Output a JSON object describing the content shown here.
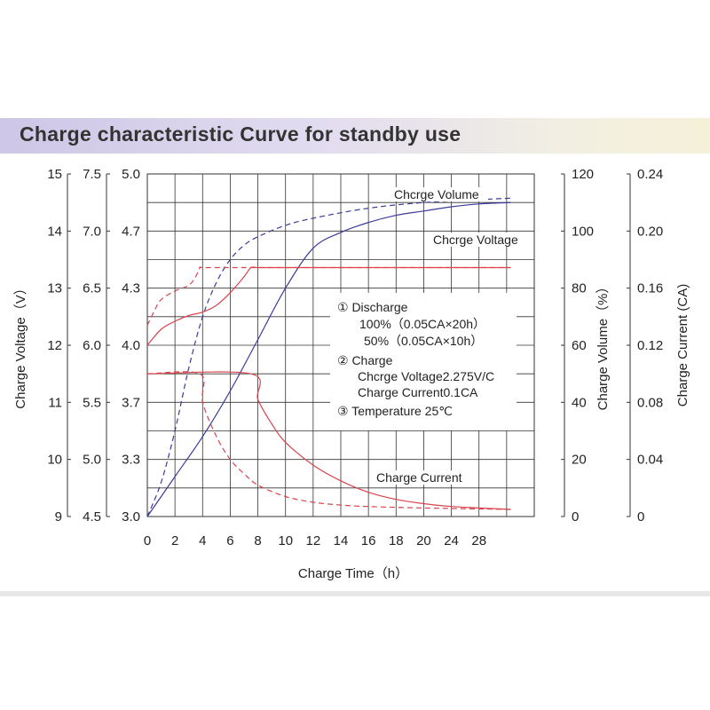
{
  "chart_data": {
    "type": "line",
    "title": "Charge characteristic Curve for standby use",
    "xlabel": "Charge Time（h）",
    "x_ticks": [
      "0",
      "2",
      "4",
      "6",
      "8",
      "10",
      "12",
      "14",
      "16",
      "18",
      "20",
      "24",
      "28"
    ],
    "xlim": [
      0,
      28
    ],
    "left_axes": [
      {
        "label": "Charge Voltage（V）",
        "ticks": [
          "15",
          "14",
          "13",
          "12",
          "11",
          "10",
          "9"
        ],
        "ylim": [
          9,
          15
        ]
      },
      {
        "label": "",
        "ticks": [
          "7.5",
          "7.0",
          "6.5",
          "6.0",
          "5.5",
          "5.0",
          "4.5"
        ],
        "ylim": [
          4.5,
          7.5
        ]
      },
      {
        "label": "",
        "ticks": [
          "5.0",
          "4.7",
          "4.3",
          "4.0",
          "3.7",
          "3.3",
          "3.0"
        ],
        "ylim": [
          3.0,
          5.0
        ]
      }
    ],
    "right_axes": [
      {
        "label": "Charge Volume（%）",
        "ticks": [
          "120",
          "100",
          "80",
          "60",
          "40",
          "20",
          "0"
        ],
        "ylim": [
          0,
          120
        ]
      },
      {
        "label": "Charge Current (CA)",
        "ticks": [
          "0.24",
          "0.20",
          "0.16",
          "0.12",
          "0.08",
          "0.04",
          "0"
        ],
        "ylim": [
          0,
          0.24
        ]
      }
    ],
    "curve_labels": {
      "volume": "Chcrge Volume",
      "voltage": "Chcrge Voltage",
      "current": "Charge Current"
    },
    "annotations": [
      "①   Discharge",
      "100%（0.05CA×20h）",
      "50%（0.05CA×10h）",
      "②   Charge",
      "Chcrge Voltage2.275V/C",
      "Charge Current0.1CA",
      "③   Temperature 25℃"
    ],
    "series": [
      {
        "id": "volume-100",
        "color": "#3b3b9c",
        "dash": false,
        "x": [
          0,
          2,
          4,
          6,
          8,
          10,
          12,
          14,
          16,
          18,
          20,
          22,
          24,
          26.3
        ],
        "y": [
          0,
          14,
          28,
          44,
          62,
          80,
          94,
          99.5,
          103,
          105.5,
          107,
          108.5,
          109.5,
          110
        ]
      },
      {
        "id": "volume-50",
        "color": "#3b3b9c",
        "dash": true,
        "x": [
          0,
          1,
          2,
          3,
          4,
          5,
          6,
          7,
          8,
          10,
          12,
          16,
          20,
          24,
          26.3
        ],
        "y": [
          0,
          12,
          30,
          52,
          70,
          82,
          90,
          95,
          98,
          102,
          104.5,
          108,
          110,
          111,
          111.5
        ]
      },
      {
        "id": "voltage-100",
        "color": "#d9444e",
        "dash": false,
        "x": [
          0,
          1,
          2,
          3,
          4,
          5,
          6,
          7,
          7.5,
          8,
          10,
          15,
          20,
          26.3
        ],
        "y": [
          12.0,
          12.28,
          12.42,
          12.52,
          12.58,
          12.7,
          12.92,
          13.2,
          13.36,
          13.36,
          13.36,
          13.36,
          13.36,
          13.36
        ]
      },
      {
        "id": "voltage-50",
        "color": "#d9444e",
        "dash": true,
        "x": [
          0,
          0.5,
          1,
          2,
          3,
          3.5,
          3.8,
          4,
          6,
          10,
          15,
          20,
          26.3
        ],
        "y": [
          12.35,
          12.6,
          12.8,
          12.95,
          13.05,
          13.2,
          13.36,
          13.36,
          13.36,
          13.36,
          13.36,
          13.36,
          13.36
        ]
      },
      {
        "id": "current-100",
        "color": "#d9444e",
        "dash": false,
        "x": [
          0,
          7.5,
          8,
          9,
          10,
          12,
          14,
          16,
          18,
          20,
          22,
          24,
          26.3
        ],
        "y": [
          0.1,
          0.1,
          0.082,
          0.065,
          0.052,
          0.036,
          0.025,
          0.017,
          0.012,
          0.009,
          0.007,
          0.006,
          0.005
        ]
      },
      {
        "id": "current-50",
        "color": "#d9444e",
        "dash": true,
        "x": [
          0,
          3.8,
          4,
          5,
          6,
          7,
          8,
          10,
          12,
          14,
          16,
          20,
          26.3
        ],
        "y": [
          0.1,
          0.1,
          0.08,
          0.056,
          0.04,
          0.03,
          0.022,
          0.014,
          0.01,
          0.008,
          0.007,
          0.006,
          0.005
        ]
      }
    ],
    "grid": true,
    "colors": {
      "volume": "#3b3b9c",
      "voltage": "#d9444e",
      "current": "#d9444e"
    }
  }
}
